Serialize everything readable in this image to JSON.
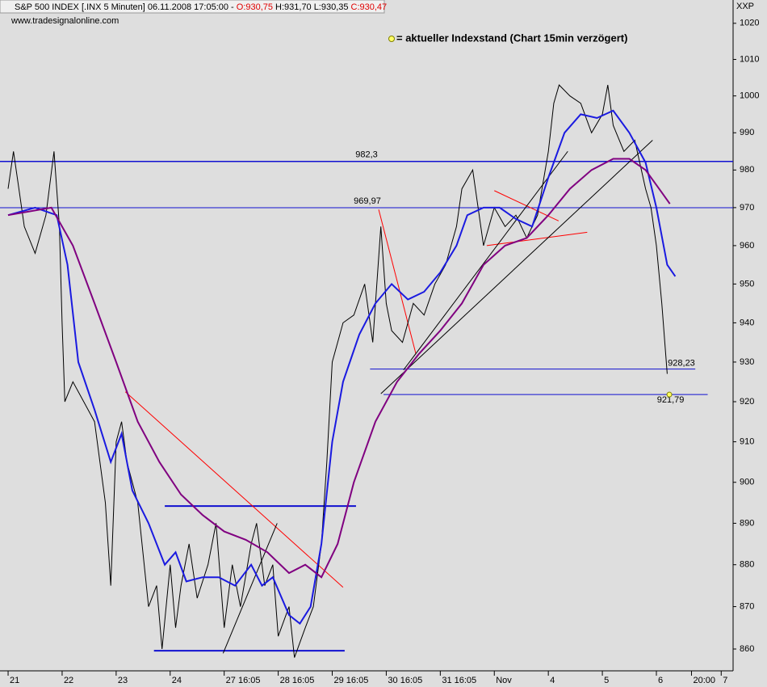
{
  "chart_data": {
    "type": "line",
    "header": {
      "symbol": "S&P 500 INDEX [.INX  5 Minuten] 06.11.2008 17:05:00 - ",
      "open": "O:930,75",
      "high": "H:931,70",
      "low": "L:930,35",
      "close": "C:930,47"
    },
    "source": "www.tradesignalonline.com",
    "corner_label": "XXP",
    "note": "= aktueller Indexstand (Chart 15min verzögert)",
    "log_scale": true,
    "ylim": [
      854.9,
      1026.5
    ],
    "yticks": [
      860,
      870,
      880,
      890,
      900,
      910,
      920,
      930,
      940,
      950,
      960,
      970,
      980,
      990,
      1000,
      1010,
      1020
    ],
    "xlim": [
      -0.15,
      13.42
    ],
    "xticks": [
      {
        "value": 0,
        "label": "21"
      },
      {
        "value": 1,
        "label": "22"
      },
      {
        "value": 2,
        "label": "23"
      },
      {
        "value": 3,
        "label": "24"
      },
      {
        "value": 4,
        "label": "27 16:05"
      },
      {
        "value": 5,
        "label": "28 16:05"
      },
      {
        "value": 6,
        "label": "29 16:05"
      },
      {
        "value": 7,
        "label": "30 16:05"
      },
      {
        "value": 8,
        "label": "31 16:05"
      },
      {
        "value": 9,
        "label": "Nov"
      },
      {
        "value": 10,
        "label": "4"
      },
      {
        "value": 11,
        "label": "5"
      },
      {
        "value": 12,
        "label": "6"
      },
      {
        "value": 12.65,
        "label": "20:00"
      },
      {
        "value": 13.2,
        "label": "7"
      }
    ],
    "series": [
      {
        "color": "#000000",
        "x": [
          0,
          0.1,
          0.2,
          0.3,
          0.5,
          0.7,
          0.85,
          0.95,
          1.0,
          1.05,
          1.2,
          1.4,
          1.6,
          1.8,
          1.9,
          2.0,
          2.1,
          2.2,
          2.4,
          2.6,
          2.75,
          2.85,
          3.0,
          3.1,
          3.2,
          3.35,
          3.5,
          3.7,
          3.85,
          4.0,
          4.15,
          4.3,
          4.5,
          4.6,
          4.75,
          4.9,
          5.0,
          5.2,
          5.3,
          5.5,
          5.65,
          5.8,
          5.9,
          6.0,
          6.2,
          6.4,
          6.6,
          6.75,
          6.9,
          7.0,
          7.1,
          7.3,
          7.5,
          7.7,
          7.9,
          8.1,
          8.3,
          8.4,
          8.6,
          8.8,
          9.0,
          9.2,
          9.4,
          9.6,
          9.8,
          10.0,
          10.1,
          10.2,
          10.4,
          10.6,
          10.8,
          11.0,
          11.1,
          11.2,
          11.4,
          11.6,
          11.8,
          11.9,
          12.0,
          12.1,
          12.2
        ],
        "values": [
          975,
          985,
          975,
          965,
          958,
          968,
          985,
          965,
          940,
          920,
          925,
          920,
          915,
          895,
          875,
          910,
          915,
          905,
          895,
          870,
          875,
          860,
          880,
          865,
          875,
          885,
          872,
          880,
          890,
          865,
          880,
          870,
          885,
          890,
          875,
          880,
          863,
          870,
          858,
          865,
          870,
          885,
          905,
          930,
          940,
          942,
          950,
          935,
          965,
          945,
          938,
          935,
          945,
          942,
          950,
          955,
          965,
          975,
          980,
          960,
          970,
          965,
          968,
          962,
          968,
          985,
          998,
          1003,
          1000,
          998,
          990,
          995,
          1003,
          992,
          985,
          988,
          975,
          970,
          960,
          945,
          927
        ]
      },
      {
        "color": "#1a1ae0",
        "x": [
          0,
          0.5,
          0.9,
          1.1,
          1.3,
          1.6,
          1.9,
          2.1,
          2.3,
          2.6,
          2.9,
          3.1,
          3.3,
          3.6,
          3.9,
          4.2,
          4.5,
          4.7,
          4.9,
          5.2,
          5.4,
          5.6,
          5.8,
          6.0,
          6.2,
          6.5,
          6.8,
          7.1,
          7.4,
          7.7,
          8.0,
          8.3,
          8.5,
          8.8,
          9.1,
          9.4,
          9.7,
          10.0,
          10.3,
          10.6,
          10.9,
          11.2,
          11.5,
          11.8,
          12.0,
          12.2,
          12.35
        ],
        "values": [
          968,
          970,
          968,
          955,
          930,
          918,
          905,
          912,
          898,
          890,
          880,
          883,
          876,
          877,
          877,
          875,
          880,
          875,
          877,
          868,
          866,
          870,
          885,
          910,
          925,
          937,
          945,
          950,
          946,
          948,
          953,
          960,
          968,
          970,
          970,
          967,
          965,
          978,
          990,
          995,
          994,
          996,
          990,
          982,
          970,
          955,
          952
        ]
      },
      {
        "color": "#800080",
        "x": [
          0,
          0.8,
          1.2,
          1.6,
          2.0,
          2.4,
          2.8,
          3.2,
          3.6,
          4.0,
          4.4,
          4.8,
          5.2,
          5.5,
          5.8,
          6.1,
          6.4,
          6.8,
          7.2,
          7.6,
          8.0,
          8.4,
          8.8,
          9.2,
          9.6,
          10.0,
          10.4,
          10.8,
          11.2,
          11.5,
          11.8,
          12.1,
          12.25
        ],
        "values": [
          968,
          970,
          960,
          945,
          930,
          915,
          905,
          897,
          892,
          888,
          886,
          883,
          878,
          880,
          877,
          885,
          900,
          915,
          925,
          932,
          938,
          945,
          955,
          960,
          962,
          968,
          975,
          980,
          983,
          983,
          980,
          974,
          971
        ]
      }
    ],
    "levels": [
      {
        "value": 982.3,
        "value_label": "982,3",
        "x": [
          -0.15,
          13.42
        ]
      },
      {
        "value": 969.97,
        "value_label": "969,97",
        "x": [
          -0.15,
          13.42
        ]
      },
      {
        "value": 928.23,
        "value_label": "928,23",
        "x": [
          6.7,
          12.72
        ]
      },
      {
        "value": 921.79,
        "value_label": "921,79",
        "x": [
          6.95,
          12.95
        ]
      },
      {
        "value": 894.2,
        "x": [
          2.9,
          6.44
        ]
      },
      {
        "value": 859.6,
        "x": [
          2.7,
          6.23
        ]
      }
    ],
    "trendlines": [
      {
        "color": "#ff0000",
        "x": [
          2.17,
          6.2
        ],
        "values": [
          922.5,
          874.6
        ]
      },
      {
        "color": "#ff0000",
        "x": [
          6.86,
          7.55
        ],
        "values": [
          969.5,
          932
        ]
      },
      {
        "color": "#ff0000",
        "x": [
          9.0,
          10.19
        ],
        "values": [
          974.5,
          966.5
        ]
      },
      {
        "color": "#ff0000",
        "x": [
          8.86,
          10.72
        ],
        "values": [
          960,
          963.5
        ]
      },
      {
        "color": "#000000",
        "x": [
          6.9,
          11.93
        ],
        "values": [
          922,
          988
        ]
      },
      {
        "color": "#000000",
        "x": [
          7.32,
          10.36
        ],
        "values": [
          928,
          985
        ]
      },
      {
        "color": "#000000",
        "x": [
          3.98,
          4.98
        ],
        "values": [
          859,
          890
        ]
      }
    ],
    "current": {
      "x": 12.24,
      "value": 921.79,
      "color": "#ffff66"
    }
  }
}
